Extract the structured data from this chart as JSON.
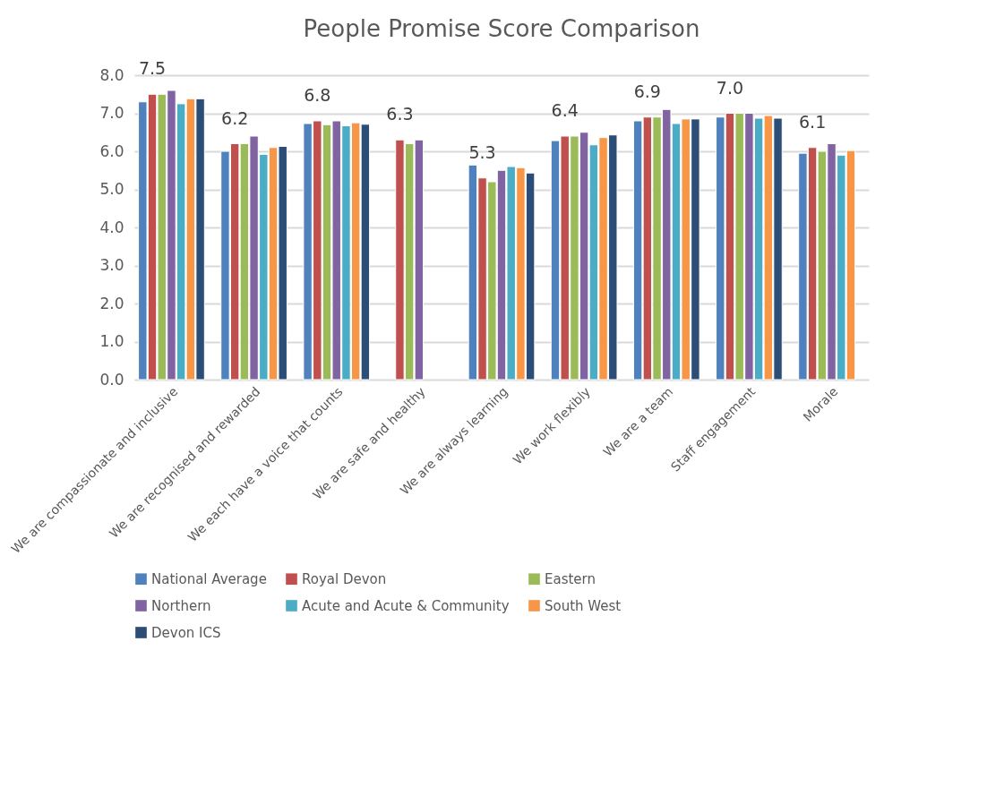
{
  "chart_data": {
    "type": "bar",
    "title": "People Promise Score Comparison",
    "categories": [
      "We are compassionate and inclusive",
      "We are recognised and rewarded",
      "We each have a voice that counts",
      "We are safe and healthy",
      "We are always learning",
      "We work flexibly",
      "We are a team",
      "Staff engagement",
      "Morale"
    ],
    "series": [
      {
        "name": "National Average",
        "color": "#4f81bd",
        "values": [
          7.3,
          6.0,
          6.73,
          null,
          5.64,
          6.28,
          6.8,
          6.9,
          5.95
        ]
      },
      {
        "name": "Royal Devon",
        "color": "#c0504d",
        "values": [
          7.5,
          6.2,
          6.8,
          6.3,
          5.3,
          6.4,
          6.9,
          7.0,
          6.1
        ],
        "value_labels": [
          "7.5",
          "6.2",
          "6.8",
          "6.3",
          "5.3",
          "6.4",
          "6.9",
          "7.0",
          "6.1"
        ]
      },
      {
        "name": "Eastern",
        "color": "#9bbb59",
        "values": [
          7.5,
          6.2,
          6.7,
          6.2,
          5.2,
          6.4,
          6.9,
          7.0,
          6.0
        ]
      },
      {
        "name": "Northern",
        "color": "#8064a2",
        "values": [
          7.6,
          6.4,
          6.8,
          6.3,
          5.5,
          6.5,
          7.1,
          7.0,
          6.2
        ]
      },
      {
        "name": "Acute and Acute & Community",
        "color": "#4bacc6",
        "values": [
          7.25,
          5.92,
          6.67,
          null,
          5.6,
          6.17,
          6.73,
          6.87,
          5.9
        ]
      },
      {
        "name": "South West",
        "color": "#f79646",
        "values": [
          7.38,
          6.1,
          6.75,
          null,
          5.57,
          6.36,
          6.85,
          6.94,
          6.02
        ]
      },
      {
        "name": "Devon ICS",
        "color": "#2c4d75",
        "values": [
          7.38,
          6.13,
          6.71,
          null,
          5.43,
          6.43,
          6.85,
          6.87,
          null
        ]
      }
    ],
    "ylim": [
      0,
      8
    ],
    "yticks": [
      {
        "value": 0,
        "label": "0.0"
      },
      {
        "value": 1,
        "label": "1.0"
      },
      {
        "value": 2,
        "label": "2.0"
      },
      {
        "value": 3,
        "label": "3.0"
      },
      {
        "value": 4,
        "label": "4.0"
      },
      {
        "value": 5,
        "label": "5.0"
      },
      {
        "value": 6,
        "label": "6.0"
      },
      {
        "value": 7,
        "label": "7.0"
      },
      {
        "value": 8,
        "label": "8.0"
      }
    ],
    "grid": "y",
    "legend": "bottom"
  }
}
